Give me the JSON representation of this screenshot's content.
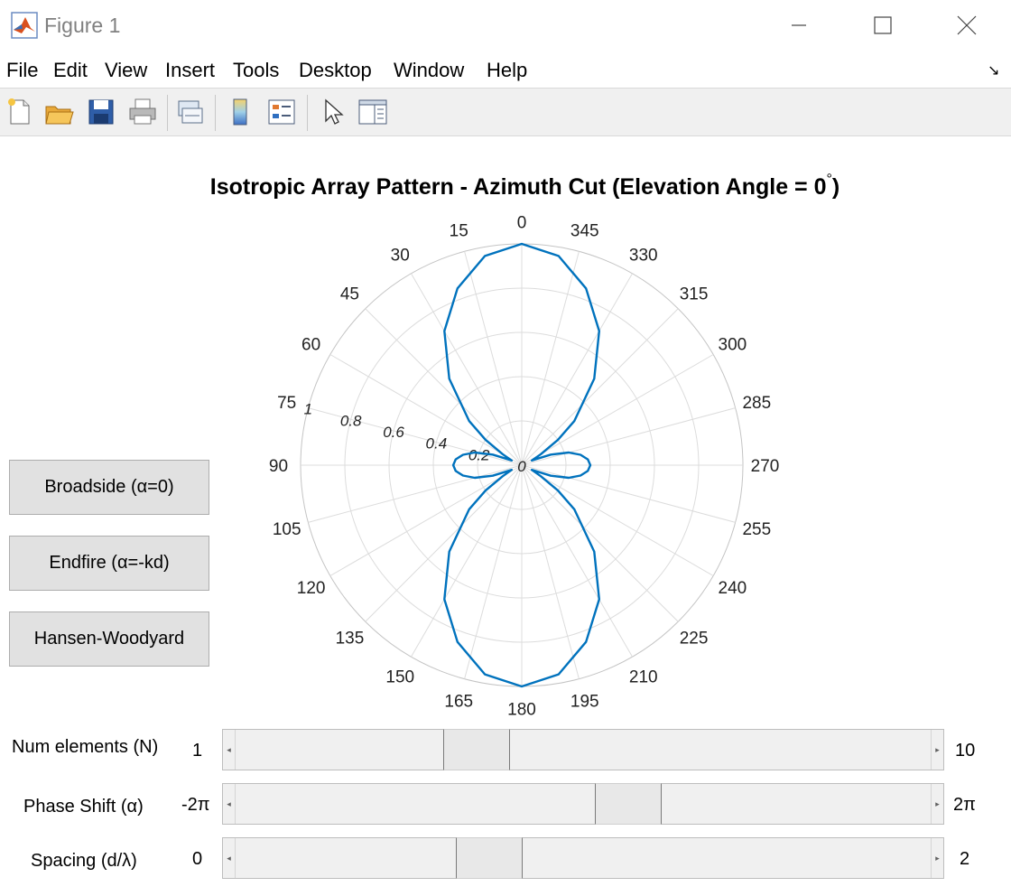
{
  "window": {
    "title": "Figure 1"
  },
  "menu": [
    "File",
    "Edit",
    "View",
    "Insert",
    "Tools",
    "Desktop",
    "Window",
    "Help"
  ],
  "toolbar": [
    "new-figure-icon",
    "open-file-icon",
    "save-icon",
    "print-icon",
    "link-axes-icon",
    "colorbar-icon",
    "legend-icon",
    "pointer-icon",
    "property-inspector-icon"
  ],
  "plot": {
    "title": "Isotropic Array Pattern - Azimuth Cut (Elevation Angle = 0",
    "title_degree": "°",
    "title_suffix": ")"
  },
  "chart_data": {
    "type": "line",
    "subtype": "polar",
    "series": [
      {
        "color": "#0072bd",
        "theta_deg": [
          0,
          10,
          20,
          30,
          40,
          50,
          55,
          60,
          65,
          70,
          75,
          80,
          85,
          90,
          95,
          100,
          105,
          110,
          115,
          120,
          125,
          130,
          140,
          150,
          160,
          170,
          180,
          190,
          200,
          210,
          220,
          230,
          235,
          240,
          245,
          250,
          255,
          260,
          265,
          270,
          275,
          280,
          285,
          290,
          295,
          300,
          305,
          310,
          320,
          330,
          340,
          350,
          360
        ],
        "r": [
          1.0,
          0.96,
          0.85,
          0.7,
          0.51,
          0.31,
          0.2,
          0.1,
          0.05,
          0.14,
          0.22,
          0.27,
          0.3,
          0.31,
          0.3,
          0.27,
          0.22,
          0.14,
          0.05,
          0.1,
          0.2,
          0.31,
          0.51,
          0.7,
          0.85,
          0.96,
          1.0,
          0.96,
          0.85,
          0.7,
          0.51,
          0.31,
          0.2,
          0.1,
          0.05,
          0.14,
          0.22,
          0.27,
          0.3,
          0.31,
          0.3,
          0.27,
          0.22,
          0.14,
          0.05,
          0.1,
          0.2,
          0.31,
          0.51,
          0.7,
          0.85,
          0.96,
          1.0
        ]
      }
    ],
    "theta_ticks": [
      "0",
      "15",
      "30",
      "45",
      "60",
      "75",
      "90",
      "105",
      "120",
      "135",
      "150",
      "165",
      "180",
      "195",
      "210",
      "225",
      "240",
      "255",
      "270",
      "285",
      "300",
      "315",
      "330",
      "345"
    ],
    "theta_direction": "counterclockwise",
    "theta_zero": "top",
    "r_ticks": [
      "0",
      "0.2",
      "0.4",
      "0.6",
      "0.8",
      "1"
    ],
    "rlim": [
      0,
      1
    ],
    "grid": true
  },
  "buttons": {
    "broadside": "Broadside (α=0)",
    "endfire": "Endfire (α=-kd)",
    "hansen": "Hansen-Woodyard"
  },
  "sliders": {
    "n": {
      "label": "Num elements (N)",
      "min": "1",
      "max": "10",
      "position": 0.33
    },
    "alpha": {
      "label": "Phase Shift (α)",
      "min": "-2π",
      "max": "2π",
      "position": 0.57
    },
    "spacing": {
      "label": "Spacing (d/λ)",
      "min": "0",
      "max": "2",
      "position": 0.35
    }
  }
}
